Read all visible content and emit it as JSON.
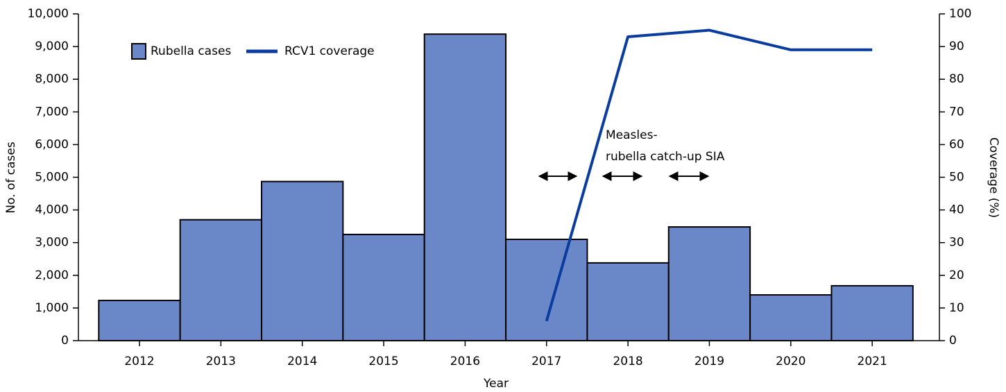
{
  "chart_data": {
    "type": "bar",
    "xlabel": "Year",
    "ylabel": "No. of cases",
    "y2label": "Coverage (%)",
    "annotation": [
      "Measles-",
      "rubella catch-up SIA"
    ],
    "categories": [
      "2012",
      "2013",
      "2014",
      "2015",
      "2016",
      "2017",
      "2018",
      "2019",
      "2020",
      "2021"
    ],
    "series": [
      {
        "name": "Rubella cases",
        "type": "bar",
        "color": "#6a87c8",
        "values": [
          1230,
          3700,
          4870,
          3250,
          9380,
          3100,
          2380,
          3480,
          1400,
          1680
        ]
      },
      {
        "name": "RCV1 coverage",
        "type": "line",
        "axis": "y2",
        "color": "#0a3c9f",
        "values": [
          null,
          null,
          null,
          null,
          null,
          6,
          93,
          95,
          89,
          89
        ]
      }
    ],
    "ylim": [
      0,
      10000
    ],
    "yticks": [
      0,
      {
        "value": 1000,
        "label": "1,000"
      },
      {
        "value": 2000,
        "label": "2,000"
      },
      {
        "value": 3000,
        "label": "3,000"
      },
      {
        "value": 4000,
        "label": "4,000"
      },
      {
        "value": 5000,
        "label": "5,000"
      },
      {
        "value": 6000,
        "label": "6,000"
      },
      {
        "value": 7000,
        "label": "7,000"
      },
      {
        "value": 8000,
        "label": "8,000"
      },
      {
        "value": 9000,
        "label": "9,000"
      },
      {
        "value": 10000,
        "label": "10,000"
      }
    ],
    "y2lim": [
      0,
      100
    ],
    "y2ticks": [
      0,
      10,
      20,
      30,
      40,
      50,
      60,
      70,
      80,
      90,
      100
    ],
    "grid": false,
    "legend": "top-left"
  }
}
